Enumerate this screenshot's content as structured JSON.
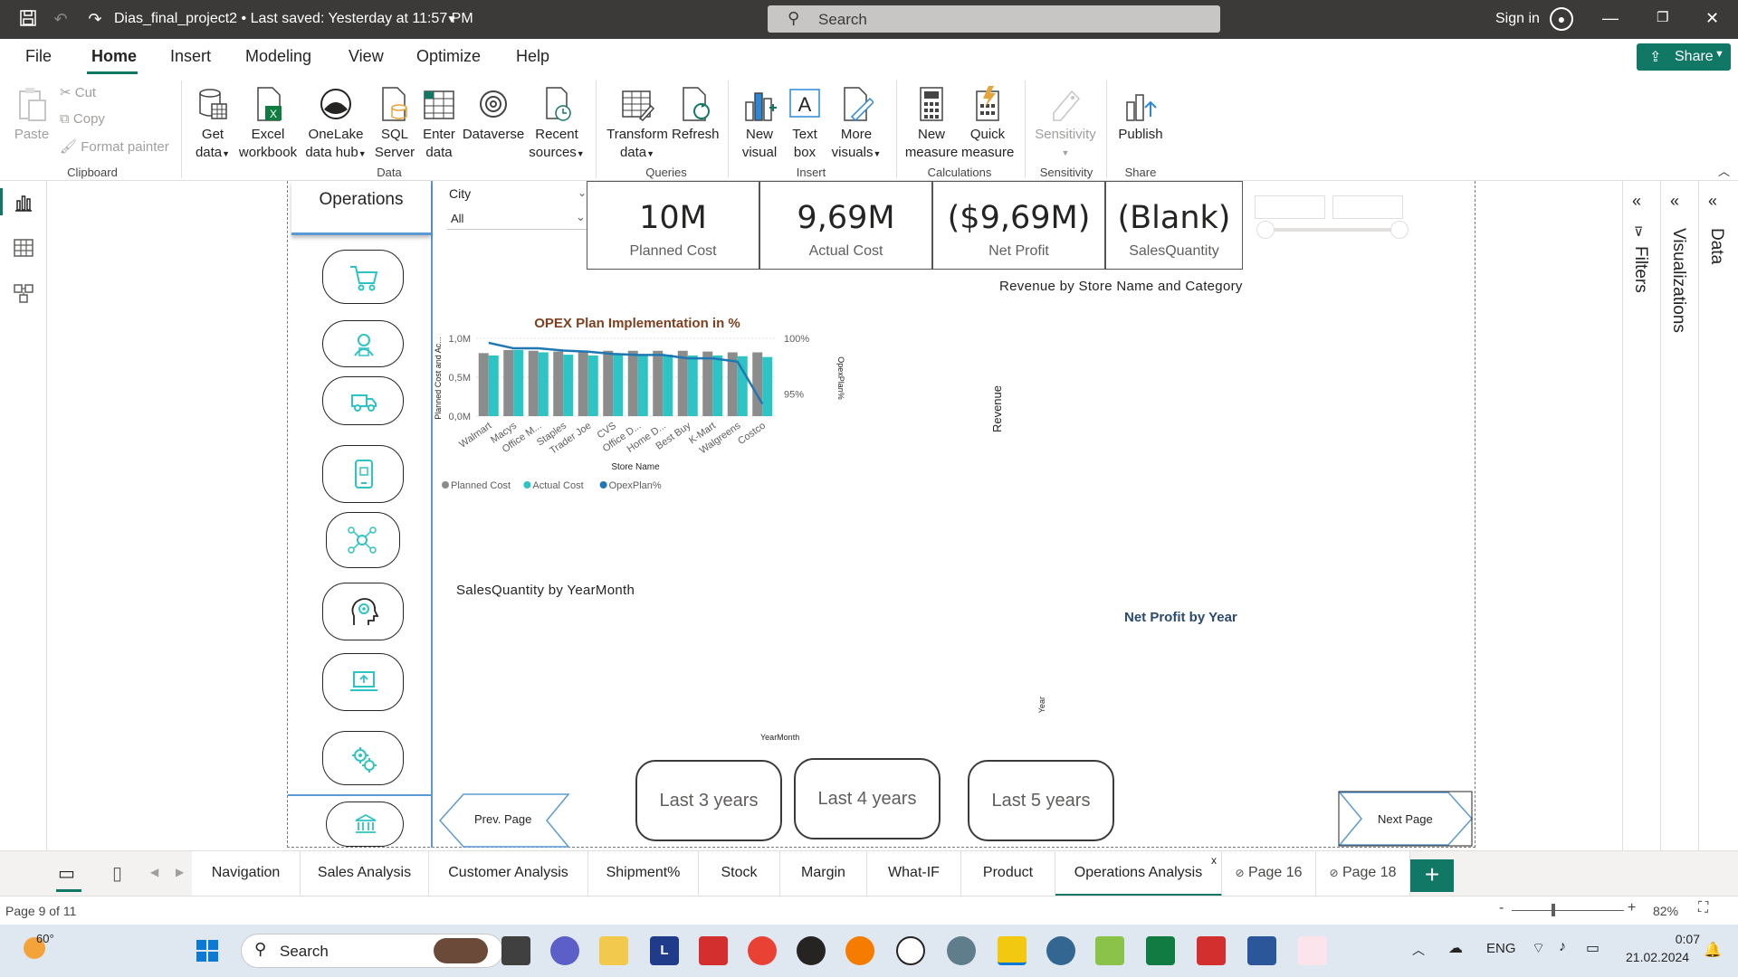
{
  "titlebar": {
    "title": "Dias_final_project2  •  Last saved: Yesterday at 11:57 PM",
    "search_placeholder": "Search",
    "signin": "Sign in"
  },
  "menu": [
    "File",
    "Home",
    "Insert",
    "Modeling",
    "View",
    "Optimize",
    "Help"
  ],
  "share_label": "Share",
  "ribbon": {
    "clipboard": {
      "paste": "Paste",
      "cut": "Cut",
      "copy": "Copy",
      "format_painter": "Format painter",
      "group": "Clipboard"
    },
    "data": {
      "get_data": "Get data",
      "excel": "Excel workbook",
      "onelake": "OneLake data hub",
      "sql": "SQL Server",
      "enter": "Enter data",
      "dataverse": "Dataverse",
      "recent": "Recent sources",
      "group": "Data"
    },
    "queries": {
      "transform": "Transform data",
      "refresh": "Refresh",
      "group": "Queries"
    },
    "insert": {
      "new_visual": "New visual",
      "text_box": "Text box",
      "more_visuals": "More visuals",
      "group": "Insert"
    },
    "calculations": {
      "new_measure": "New measure",
      "quick_measure": "Quick measure",
      "group": "Calculations"
    },
    "sensitivity": {
      "label": "Sensitivity",
      "group": "Sensitivity"
    },
    "share": {
      "publish": "Publish",
      "group": "Share"
    }
  },
  "report": {
    "operations_header": "Operations",
    "city_slicer": {
      "label": "City",
      "value": "All"
    },
    "cards": [
      {
        "value": "10M",
        "label": "Planned Cost"
      },
      {
        "value": "9,69M",
        "label": "Actual Cost"
      },
      {
        "value": "($9,69M)",
        "label": "Net Profit"
      },
      {
        "value": "(Blank)",
        "label": "SalesQuantity"
      }
    ],
    "revenue_title": "Revenue by Store Name and Category",
    "revenue_axis": "Revenue",
    "salesqty_title": "SalesQuantity by YearMonth",
    "salesqty_axis": "YearMonth",
    "netprofit_title": "Net Profit by Year",
    "netprofit_axis": "Year",
    "prev_page": "Prev. Page",
    "next_page": "Next Page",
    "year_buttons": [
      "Last 3 years",
      "Last 4 years",
      "Last 5 years"
    ]
  },
  "chart_data": {
    "type": "bar",
    "title": "OPEX Plan Implementation in %",
    "xlabel": "Store Name",
    "ylabel": "Planned Cost and Ac...",
    "y2label": "OpexPlan%",
    "ylim": [
      0,
      1000000
    ],
    "y_ticks": [
      "1,0M",
      "0,5M",
      "0,0M"
    ],
    "y2_ticks": [
      "100%",
      "95%"
    ],
    "y2lim": [
      93,
      100
    ],
    "categories": [
      "Walmart",
      "Macys",
      "Office M...",
      "Staples",
      "Trader Joe",
      "CVS",
      "Office D...",
      "Home D...",
      "Best Buy",
      "K-Mart",
      "Walgreens",
      "Costco"
    ],
    "series": [
      {
        "name": "Planned Cost",
        "kind": "bar",
        "color": "#8c8c8c",
        "values": [
          810000,
          850000,
          840000,
          830000,
          830000,
          840000,
          840000,
          840000,
          840000,
          830000,
          820000,
          820000
        ]
      },
      {
        "name": "Actual Cost",
        "kind": "bar",
        "color": "#2ec4c6",
        "values": [
          780000,
          850000,
          820000,
          790000,
          780000,
          800000,
          790000,
          790000,
          780000,
          780000,
          770000,
          760000
        ]
      },
      {
        "name": "OpexPlan%",
        "kind": "line",
        "color": "#1f77b4",
        "values": [
          99.6,
          99.1,
          99.1,
          98.9,
          98.8,
          98.6,
          98.5,
          98.5,
          98.2,
          98.2,
          97.9,
          94.1
        ]
      }
    ],
    "legend": "bottom-left"
  },
  "page_tabs": [
    "Navigation",
    "Sales Analysis",
    "Customer Analysis",
    "Shipment%",
    "Stock",
    "Margin",
    "What-IF",
    "Product",
    "Operations Analysis",
    "Page 16",
    "Page 18"
  ],
  "active_tab": "Operations Analysis",
  "status": {
    "page": "Page 9 of 11",
    "zoom": "82%"
  },
  "right_panes": [
    "Filters",
    "Visualizations",
    "Data"
  ],
  "taskbar": {
    "weather": "60°",
    "search": "Search",
    "lang": "ENG",
    "time": "0:07",
    "date": "21.02.2024"
  }
}
